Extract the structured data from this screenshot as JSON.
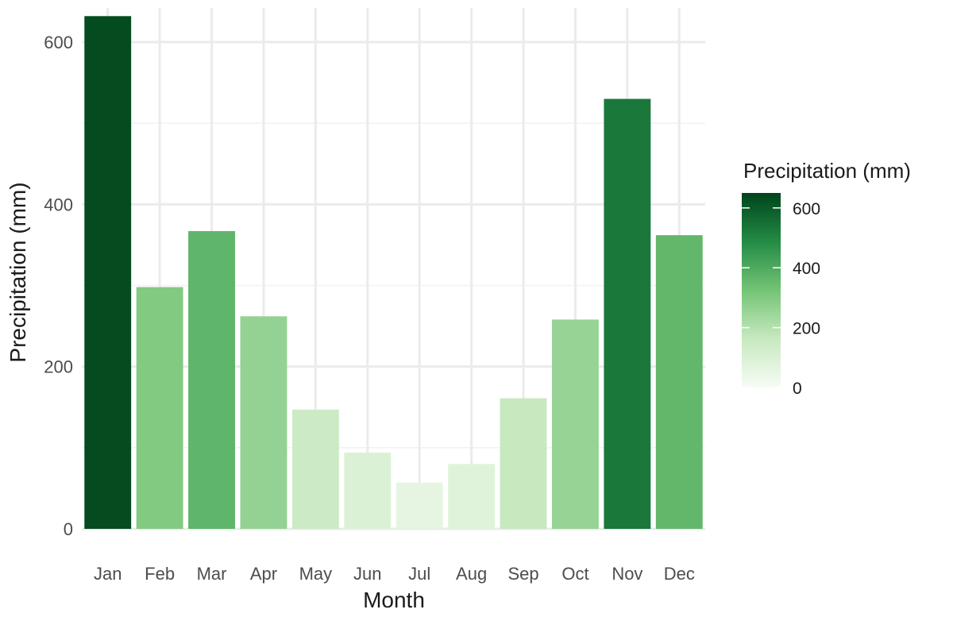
{
  "chart_data": {
    "type": "bar",
    "xlabel": "Month",
    "ylabel": "Precipitation (mm)",
    "categories": [
      "Jan",
      "Feb",
      "Mar",
      "Apr",
      "May",
      "Jun",
      "Jul",
      "Aug",
      "Sep",
      "Oct",
      "Nov",
      "Dec"
    ],
    "values": [
      632,
      298,
      367,
      262,
      147,
      94,
      57,
      80,
      161,
      258,
      530,
      362
    ],
    "ylim": [
      0,
      632
    ],
    "yticks": [
      0,
      200,
      400,
      600
    ],
    "grid": true,
    "legend": {
      "title": "Precipitation (mm)",
      "placement": "right",
      "type": "colorbar",
      "range": [
        0,
        650
      ],
      "ticks": [
        0,
        200,
        400,
        600
      ],
      "colors": [
        "#f7fcf5",
        "#c7e9c0",
        "#74c476",
        "#238b45",
        "#00441b"
      ]
    }
  }
}
